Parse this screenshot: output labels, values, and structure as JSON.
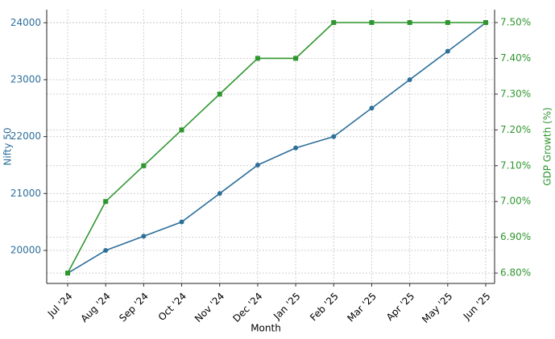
{
  "chart_data": {
    "type": "line",
    "x_label": "Month",
    "y_label": "Nifty 50",
    "y2_label": "GDP Growth (%)",
    "categories": [
      "Jul '24",
      "Aug '24",
      "Sep '24",
      "Oct '24",
      "Nov '24",
      "Dec '24",
      "Jan '25",
      "Feb '25",
      "Mar '25",
      "Apr '25",
      "May '25",
      "Jun '25"
    ],
    "series": [
      {
        "name": "Nifty 50",
        "color": "#2e6f9a",
        "marker": "circle",
        "values": [
          19600,
          20000,
          20250,
          20500,
          21000,
          21500,
          21800,
          22000,
          22500,
          23000,
          23500,
          24000
        ]
      },
      {
        "name": "GDP Growth (%)",
        "color": "#2f962f",
        "marker": "square",
        "axis": "y2",
        "values": [
          6.8,
          7.0,
          7.1,
          7.2,
          7.3,
          7.4,
          7.4,
          7.5,
          7.5,
          7.5,
          7.5,
          7.5
        ]
      }
    ],
    "ylim": [
      19420,
      24230
    ],
    "yticks": [
      20000,
      21000,
      22000,
      23000,
      24000
    ],
    "y2lim": [
      6.771,
      7.536
    ],
    "y2ticks": [
      {
        "value": 6.8,
        "label": "6.80%"
      },
      {
        "value": 6.9,
        "label": "6.90%"
      },
      {
        "value": 7.0,
        "label": "7.00%"
      },
      {
        "value": 7.1,
        "label": "7.10%"
      },
      {
        "value": 7.2,
        "label": "7.20%"
      },
      {
        "value": 7.3,
        "label": "7.30%"
      },
      {
        "value": 7.4,
        "label": "7.40%"
      },
      {
        "value": 7.5,
        "label": "7.50%"
      }
    ],
    "grid": true
  }
}
